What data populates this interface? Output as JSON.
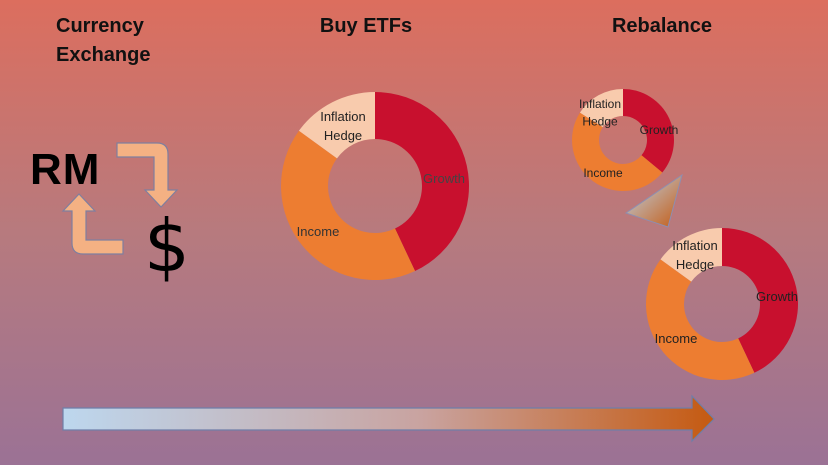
{
  "headings": {
    "currency_exchange": "Currency Exchange",
    "buy_etfs": "Buy ETFs",
    "rebalance": "Rebalance"
  },
  "currency": {
    "from": "RM",
    "to": "$"
  },
  "colors": {
    "growth": "#c8102e",
    "income": "#ed7d31",
    "inflation_hedge": "#f8cbad",
    "arrow_fill": "#f4b183",
    "timeline_start": "#bdd7ee",
    "timeline_end": "#c55a11"
  },
  "chart_data": [
    {
      "type": "donut",
      "title": "Buy ETFs",
      "categories": [
        "Growth",
        "Income",
        "Inflation Hedge"
      ],
      "values": [
        43,
        42,
        15
      ]
    },
    {
      "type": "donut",
      "title": "Rebalance (before)",
      "categories": [
        "Growth",
        "Income",
        "Inflation Hedge"
      ],
      "values": [
        36,
        48,
        16
      ]
    },
    {
      "type": "donut",
      "title": "Rebalance (after)",
      "categories": [
        "Growth",
        "Income",
        "Inflation Hedge"
      ],
      "values": [
        43,
        42,
        15
      ]
    }
  ]
}
